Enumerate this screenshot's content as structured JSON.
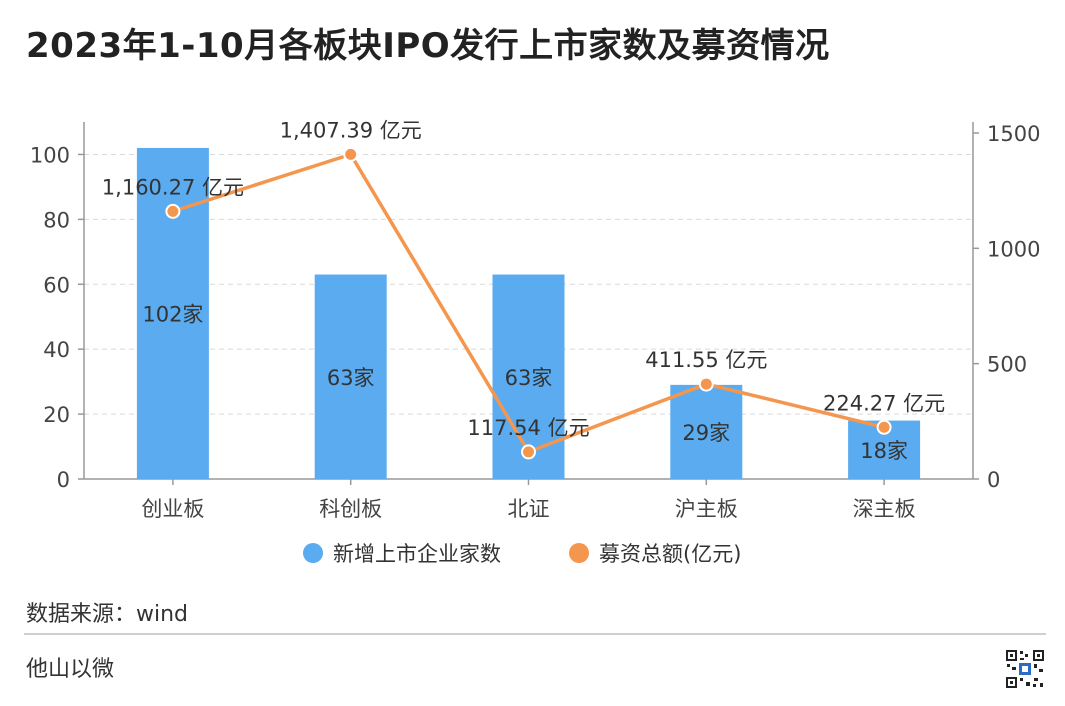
{
  "title": "2023年1-10月各板块IPO发行上市家数及募资情况",
  "source": "数据来源：wind",
  "brand": "他山以微",
  "colors": {
    "bar": "#5aabf0",
    "line": "#f5964e",
    "axis": "#999999",
    "grid": "#d9d9d9"
  },
  "chart_data": {
    "type": "bar",
    "categories": [
      "创业板",
      "科创板",
      "北证",
      "沪主板",
      "深主板"
    ],
    "series": [
      {
        "name": "新增上市企业家数",
        "type": "bar",
        "axis": "left",
        "values": [
          102,
          63,
          63,
          29,
          18
        ],
        "labels": [
          "102家",
          "63家",
          "63家",
          "29家",
          "18家"
        ]
      },
      {
        "name": "募资总额(亿元)",
        "type": "line",
        "axis": "right",
        "values": [
          1160.27,
          1407.39,
          117.54,
          411.55,
          224.27
        ],
        "labels": [
          "1,160.27 亿元",
          "1,407.39 亿元",
          "117.54 亿元",
          "411.55 亿元",
          "224.27 亿元"
        ]
      }
    ],
    "y_left": {
      "ticks": [
        0,
        20,
        40,
        60,
        80,
        100
      ],
      "lim": [
        0,
        110
      ]
    },
    "y_right": {
      "ticks": [
        0,
        500,
        1000,
        1500
      ],
      "lim": [
        0,
        1500
      ]
    },
    "grid": true,
    "legend": "bottom"
  }
}
